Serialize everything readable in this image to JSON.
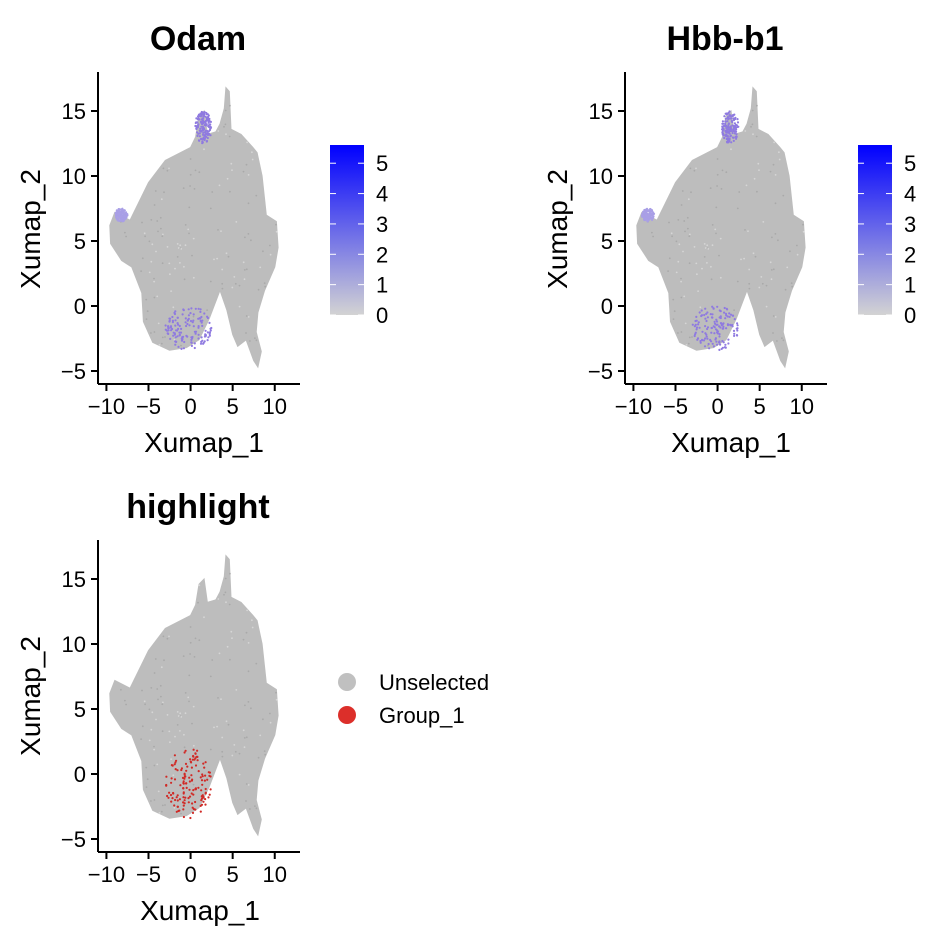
{
  "chart_data": [
    {
      "type": "scatter",
      "subtype": "umap-feature-plot",
      "title": "Odam",
      "xlabel": "Xumap_1",
      "ylabel": "Xumap_2",
      "xlim": [
        -11,
        13
      ],
      "ylim": [
        -6,
        18
      ],
      "xticks": [
        -10,
        -5,
        0,
        5,
        10
      ],
      "xtick_labels": [
        "−10",
        "−5",
        "0",
        "5",
        "10"
      ],
      "yticks": [
        -5,
        0,
        5,
        10,
        15
      ],
      "yticks_labels": [
        "−5",
        "0",
        "5",
        "10",
        "15"
      ],
      "grid": false,
      "colorbar": {
        "range": [
          0,
          5.6
        ],
        "ticks": [
          0,
          1,
          2,
          3,
          4,
          5
        ],
        "tick_labels": [
          "0",
          "1",
          "2",
          "3",
          "4",
          "5"
        ],
        "low_color": "#d3d3d3",
        "high_color": "#0000ff"
      },
      "expressing_regions": [
        {
          "x_range": [
            -3,
            2.5
          ],
          "y_range": [
            -3.4,
            0
          ],
          "level": "mid"
        },
        {
          "x_range": [
            0.5,
            2.5
          ],
          "y_range": [
            12.5,
            15
          ],
          "level": "mid"
        },
        {
          "x_range": [
            -9,
            -7.5
          ],
          "y_range": [
            6.5,
            7.5
          ],
          "level": "low"
        }
      ]
    },
    {
      "type": "scatter",
      "subtype": "umap-feature-plot",
      "title": "Hbb-b1",
      "xlabel": "Xumap_1",
      "ylabel": "Xumap_2",
      "xlim": [
        -11,
        13
      ],
      "ylim": [
        -6,
        18
      ],
      "xticks": [
        -10,
        -5,
        0,
        5,
        10
      ],
      "xtick_labels": [
        "−10",
        "−5",
        "0",
        "5",
        "10"
      ],
      "yticks": [
        -5,
        0,
        5,
        10,
        15
      ],
      "yticks_labels": [
        "−5",
        "0",
        "5",
        "10",
        "15"
      ],
      "grid": false,
      "colorbar": {
        "range": [
          0,
          5.6
        ],
        "ticks": [
          0,
          1,
          2,
          3,
          4,
          5
        ],
        "tick_labels": [
          "0",
          "1",
          "2",
          "3",
          "4",
          "5"
        ],
        "low_color": "#d3d3d3",
        "high_color": "#0000ff"
      },
      "expressing_regions": [
        {
          "x_range": [
            -3,
            2.5
          ],
          "y_range": [
            -3.4,
            0
          ],
          "level": "mid"
        },
        {
          "x_range": [
            0.5,
            2.5
          ],
          "y_range": [
            12.5,
            15
          ],
          "level": "mid"
        },
        {
          "x_range": [
            -9,
            -7.5
          ],
          "y_range": [
            6.5,
            7.5
          ],
          "level": "low"
        }
      ]
    },
    {
      "type": "scatter",
      "subtype": "umap-highlight-plot",
      "title": "highlight",
      "xlabel": "Xumap_1",
      "ylabel": "Xumap_2",
      "xlim": [
        -11,
        13
      ],
      "ylim": [
        -6,
        18
      ],
      "xticks": [
        -10,
        -5,
        0,
        5,
        10
      ],
      "xtick_labels": [
        "−10",
        "−5",
        "0",
        "5",
        "10"
      ],
      "yticks": [
        -5,
        0,
        5,
        10,
        15
      ],
      "yticks_labels": [
        "−5",
        "0",
        "5",
        "10",
        "15"
      ],
      "grid": false,
      "legend": {
        "position": "right",
        "items": [
          {
            "label": "Unselected",
            "color": "#c0c0c0"
          },
          {
            "label": "Group_1",
            "color": "#dc2f2a"
          }
        ]
      },
      "highlighted_region": {
        "x_range": [
          -3,
          2.5
        ],
        "y_range": [
          -3.4,
          2
        ]
      }
    }
  ],
  "colors": {
    "cells": "#bdbdbd",
    "expr_mid": "#8f7ae0",
    "highlight": "#d02a26"
  }
}
